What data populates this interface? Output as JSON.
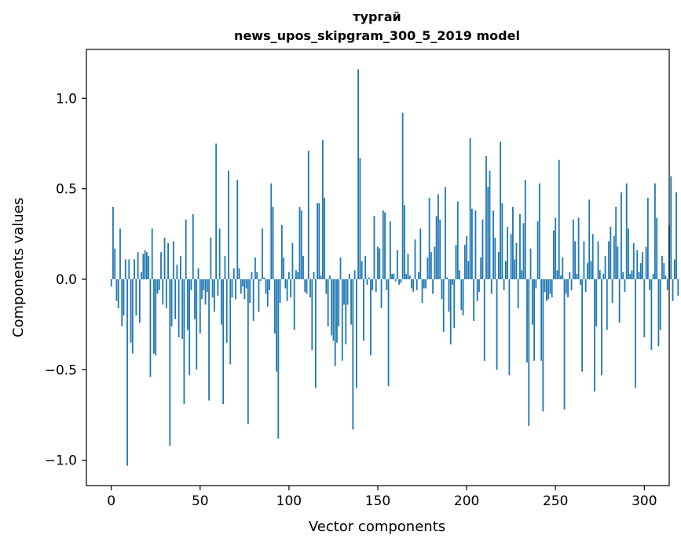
{
  "chart_data": {
    "type": "bar",
    "title_line1": "тургай",
    "title_line2": "news_upos_skipgram_300_5_2019 model",
    "xlabel": "Vector components",
    "ylabel": "Components values",
    "xlim": [
      -14,
      314
    ],
    "ylim": [
      -1.14,
      1.27
    ],
    "xticks": [
      0,
      50,
      100,
      150,
      200,
      250,
      300
    ],
    "xtick_labels": [
      "0",
      "50",
      "100",
      "150",
      "200",
      "250",
      "300"
    ],
    "yticks": [
      -1.0,
      -0.5,
      0.0,
      0.5,
      1.0
    ],
    "ytick_labels": [
      "−1.0",
      "−0.5",
      "0.0",
      "0.5",
      "1.0"
    ],
    "bar_color": "#1f77b4",
    "values": [
      -0.04,
      0.4,
      0.17,
      -0.12,
      -0.16,
      0.28,
      -0.26,
      -0.2,
      0.11,
      -1.03,
      0.11,
      -0.35,
      -0.41,
      0.11,
      -0.2,
      0.15,
      -0.24,
      0.04,
      0.14,
      0.16,
      0.15,
      0.13,
      -0.54,
      0.28,
      -0.41,
      -0.42,
      -0.08,
      -0.06,
      0.15,
      -0.14,
      0.23,
      -0.16,
      0.2,
      -0.92,
      -0.26,
      0.21,
      -0.22,
      0.08,
      -0.32,
      0.13,
      -0.33,
      -0.69,
      0.33,
      -0.28,
      -0.53,
      -0.06,
      0.36,
      -0.22,
      -0.5,
      0.06,
      -0.3,
      -0.11,
      -0.06,
      -0.14,
      -0.07,
      -0.67,
      0.23,
      -0.1,
      -0.18,
      0.75,
      -0.09,
      0.28,
      -0.25,
      -0.69,
      0.13,
      -0.35,
      0.6,
      -0.47,
      -0.1,
      0.06,
      -0.11,
      0.55,
      0.06,
      -0.08,
      -0.04,
      -0.11,
      -0.05,
      -0.8,
      -0.13,
      0.04,
      -0.23,
      0.12,
      0.04,
      -0.18,
      -0.01,
      0.28,
      0.01,
      -0.08,
      -0.15,
      -0.06,
      0.53,
      0.4,
      -0.3,
      -0.51,
      -0.88,
      -0.13,
      0.3,
      0.12,
      -0.05,
      -0.12,
      0.04,
      -0.1,
      0.2,
      -0.28,
      0.05,
      0.04,
      0.4,
      0.38,
      0.13,
      -0.07,
      -0.08,
      0.71,
      -0.1,
      -0.39,
      0.04,
      -0.6,
      0.42,
      0.42,
      0.02,
      0.77,
      0.45,
      -0.08,
      -0.26,
      0.02,
      -0.31,
      -0.34,
      -0.48,
      -0.35,
      -0.26,
      0.12,
      -0.45,
      -0.14,
      -0.36,
      -0.14,
      0.03,
      -0.25,
      -0.83,
      0.05,
      -0.6,
      1.16,
      0.67,
      0.1,
      -0.34,
      0.13,
      -0.03,
      0.01,
      -0.42,
      -0.06,
      0.35,
      -0.07,
      0.18,
      0.17,
      -0.16,
      0.38,
      0.37,
      -0.06,
      -0.59,
      0.32,
      0.03,
      0.03,
      -0.01,
      0.16,
      -0.03,
      -0.02,
      0.92,
      0.41,
      0.03,
      0.14,
      0.02,
      -0.05,
      -0.07,
      0.22,
      -0.06,
      0.04,
      0.28,
      -0.13,
      -0.05,
      -0.05,
      0.12,
      0.45,
      0.15,
      -0.08,
      0.18,
      0.35,
      0.47,
      0.33,
      -0.11,
      -0.29,
      0.51,
      0.01,
      -0.18,
      -0.36,
      -0.03,
      -0.27,
      0.19,
      0.43,
      0.05,
      -0.17,
      -0.2,
      0.19,
      0.24,
      0.1,
      0.78,
      0.39,
      -0.23,
      0.38,
      -0.12,
      -0.07,
      0.12,
      0.33,
      -0.45,
      0.68,
      0.51,
      0.6,
      -0.08,
      0.38,
      0.23,
      -0.5,
      0.15,
      0.76,
      0.42,
      -0.06,
      0.1,
      0.29,
      -0.53,
      0.25,
      0.4,
      0.11,
      0.2,
      -0.16,
      0.36,
      0.05,
      0.31,
      0.55,
      -0.46,
      -0.81,
      0.17,
      -0.25,
      -0.45,
      -0.05,
      0.32,
      0.53,
      -0.45,
      -0.73,
      -0.07,
      -0.12,
      -0.11,
      -0.08,
      -0.1,
      0.27,
      0.34,
      0.05,
      0.66,
      0.02,
      0.12,
      -0.72,
      -0.08,
      -0.1,
      0.04,
      -0.06,
      0.33,
      0.21,
      0.03,
      0.34,
      -0.03,
      -0.51,
      0.21,
      -0.07,
      0.09,
      0.44,
      0.1,
      0.25,
      -0.62,
      -0.26,
      0.21,
      0.05,
      -0.53,
      0.03,
      0.13,
      -0.28,
      0.21,
      0.29,
      -0.13,
      0.24,
      0.4,
      0.18,
      -0.24,
      0.48,
      0.04,
      -0.07,
      0.53,
      0.28,
      0.03,
      0.05,
      0.2,
      -0.6,
      0.16,
      0.04,
      0.09,
      0.15,
      -0.32,
      0.18,
      0.45,
      -0.06,
      -0.39,
      0.03,
      0.53,
      0.34,
      -0.37,
      -0.28,
      0.13,
      0.09,
      0.02,
      -0.06,
      0.3,
      0.57,
      -0.12,
      0.11,
      0.48,
      -0.09
    ]
  }
}
